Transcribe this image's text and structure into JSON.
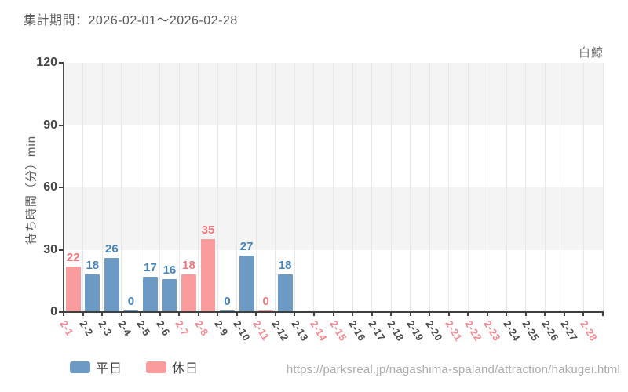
{
  "header": {
    "title": "集計期間：2026-02-01〜2026-02-28",
    "attraction": "白鯨"
  },
  "footer": {
    "url": "https://parksreal.jp/nagashima-spaland/attraction/hakugei.html"
  },
  "chart_data": {
    "type": "bar",
    "title": "集計期間：2026-02-01〜2026-02-28",
    "series_name": "白鯨",
    "xlabel": "",
    "ylabel": "待ち時間（分）min",
    "ylim": [
      0,
      120
    ],
    "yticks": [
      0,
      30,
      60,
      90,
      120
    ],
    "grid": "alternating horizontal bands + vertical gridlines",
    "legend_position": "bottom-left",
    "categories": [
      "2-1",
      "2-2",
      "2-3",
      "2-4",
      "2-5",
      "2-6",
      "2-7",
      "2-8",
      "2-9",
      "2-10",
      "2-11",
      "2-12",
      "2-13",
      "2-14",
      "2-15",
      "2-16",
      "2-17",
      "2-18",
      "2-19",
      "2-20",
      "2-21",
      "2-22",
      "2-23",
      "2-24",
      "2-25",
      "2-26",
      "2-27",
      "2-28"
    ],
    "values": [
      22,
      18,
      26,
      0,
      17,
      16,
      18,
      35,
      0,
      27,
      0,
      18,
      null,
      null,
      null,
      null,
      null,
      null,
      null,
      null,
      null,
      null,
      null,
      null,
      null,
      null,
      null,
      null
    ],
    "day_type": [
      "holiday",
      "weekday",
      "weekday",
      "weekday",
      "weekday",
      "weekday",
      "holiday",
      "holiday",
      "weekday",
      "weekday",
      "holiday",
      "weekday",
      "weekday",
      "holiday",
      "holiday",
      "weekday",
      "weekday",
      "weekday",
      "weekday",
      "weekday",
      "holiday",
      "holiday",
      "holiday",
      "weekday",
      "weekday",
      "weekday",
      "weekday",
      "holiday"
    ],
    "legend": [
      {
        "label": "平日",
        "type": "weekday"
      },
      {
        "label": "休日",
        "type": "holiday"
      }
    ]
  },
  "colors": {
    "bar_weekday": "#6d9ac5",
    "bar_holiday": "#fa9b9d",
    "value_label_weekday": "#4483ba",
    "value_label_holiday": "#f4767c",
    "xtick_weekday": "#4a4a4a",
    "xtick_holiday": "#f5898f",
    "band_gray": "#f4f4f5",
    "band_white": "#ffffff"
  }
}
